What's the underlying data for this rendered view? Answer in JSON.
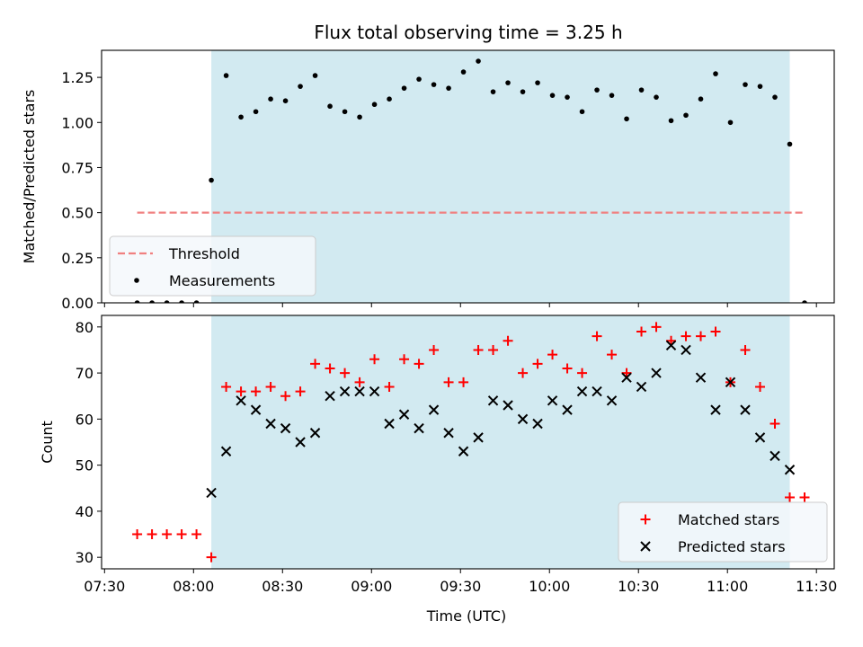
{
  "figure": {
    "title": "Flux total observing time = 3.25 h",
    "xlabel": "Time (UTC)"
  },
  "colors": {
    "shade": "#add8e6",
    "threshold": "#f08080",
    "measurements": "#000000",
    "matched": "#ff0000",
    "predicted": "#000000",
    "legend_bg": "#f4f8fb",
    "legend_border": "#cccccc"
  },
  "chart_data": [
    {
      "type": "scatter",
      "ylabel": "Matched/Predicted stars",
      "ylim": [
        0,
        1.4
      ],
      "xlim": [
        "07:29",
        "11:36"
      ],
      "xticks": [
        "07:30",
        "08:00",
        "08:30",
        "09:00",
        "09:30",
        "10:00",
        "10:30",
        "11:00",
        "11:30"
      ],
      "yticks": [
        "0.00",
        "0.25",
        "0.50",
        "0.75",
        "1.00",
        "1.25"
      ],
      "shaded_span": [
        "08:06",
        "11:21"
      ],
      "legend_position": "lower-left",
      "series": [
        {
          "name": "Threshold",
          "kind": "dashed-line",
          "x": [
            "07:41",
            "11:26"
          ],
          "y": [
            0.5,
            0.5
          ]
        },
        {
          "name": "Measurements",
          "kind": "dot",
          "x": [
            "07:41",
            "07:46",
            "07:51",
            "07:56",
            "08:01",
            "08:06",
            "08:11",
            "08:16",
            "08:21",
            "08:26",
            "08:31",
            "08:36",
            "08:41",
            "08:46",
            "08:51",
            "08:56",
            "09:01",
            "09:06",
            "09:11",
            "09:16",
            "09:21",
            "09:26",
            "09:31",
            "09:36",
            "09:41",
            "09:46",
            "09:51",
            "09:56",
            "10:01",
            "10:06",
            "10:11",
            "10:16",
            "10:21",
            "10:26",
            "10:31",
            "10:36",
            "10:41",
            "10:46",
            "10:51",
            "10:56",
            "11:01",
            "11:06",
            "11:11",
            "11:16",
            "11:21",
            "11:26"
          ],
          "y": [
            0,
            0,
            0,
            0,
            0,
            0.68,
            1.26,
            1.03,
            1.06,
            1.13,
            1.12,
            1.2,
            1.26,
            1.09,
            1.06,
            1.03,
            1.1,
            1.13,
            1.19,
            1.24,
            1.21,
            1.19,
            1.28,
            1.34,
            1.17,
            1.22,
            1.17,
            1.22,
            1.15,
            1.14,
            1.06,
            1.18,
            1.15,
            1.02,
            1.18,
            1.14,
            1.01,
            1.04,
            1.13,
            1.27,
            1.0,
            1.21,
            1.2,
            1.14,
            0.88,
            0
          ]
        }
      ]
    },
    {
      "type": "scatter",
      "ylabel": "Count",
      "ylim": [
        27.5,
        82.5
      ],
      "xlim": [
        "07:29",
        "11:36"
      ],
      "xticks": [
        "07:30",
        "08:00",
        "08:30",
        "09:00",
        "09:30",
        "10:00",
        "10:30",
        "11:00",
        "11:30"
      ],
      "yticks": [
        "30",
        "40",
        "50",
        "60",
        "70",
        "80"
      ],
      "shaded_span": [
        "08:06",
        "11:21"
      ],
      "legend_position": "lower-right",
      "series": [
        {
          "name": "Matched stars",
          "kind": "plus",
          "x": [
            "07:41",
            "07:46",
            "07:51",
            "07:56",
            "08:01",
            "08:06",
            "08:11",
            "08:16",
            "08:21",
            "08:26",
            "08:31",
            "08:36",
            "08:41",
            "08:46",
            "08:51",
            "08:56",
            "09:01",
            "09:06",
            "09:11",
            "09:16",
            "09:21",
            "09:26",
            "09:31",
            "09:36",
            "09:41",
            "09:46",
            "09:51",
            "09:56",
            "10:01",
            "10:06",
            "10:11",
            "10:16",
            "10:21",
            "10:26",
            "10:31",
            "10:36",
            "10:41",
            "10:46",
            "10:51",
            "10:56",
            "11:01",
            "11:06",
            "11:11",
            "11:16",
            "11:21",
            "11:26"
          ],
          "y": [
            35,
            35,
            35,
            35,
            35,
            30,
            67,
            66,
            66,
            67,
            65,
            66,
            72,
            71,
            70,
            68,
            73,
            67,
            73,
            72,
            75,
            68,
            68,
            75,
            75,
            77,
            70,
            72,
            74,
            71,
            70,
            78,
            74,
            70,
            79,
            80,
            77,
            78,
            78,
            79,
            68,
            75,
            67,
            59,
            43,
            43
          ]
        },
        {
          "name": "Predicted stars",
          "kind": "x",
          "x": [
            "08:06",
            "08:11",
            "08:16",
            "08:21",
            "08:26",
            "08:31",
            "08:36",
            "08:41",
            "08:46",
            "08:51",
            "08:56",
            "09:01",
            "09:06",
            "09:11",
            "09:16",
            "09:21",
            "09:26",
            "09:31",
            "09:36",
            "09:41",
            "09:46",
            "09:51",
            "09:56",
            "10:01",
            "10:06",
            "10:11",
            "10:16",
            "10:21",
            "10:26",
            "10:31",
            "10:36",
            "10:41",
            "10:46",
            "10:51",
            "10:56",
            "11:01",
            "11:06",
            "11:11",
            "11:16",
            "11:21"
          ],
          "y": [
            44,
            53,
            64,
            62,
            59,
            58,
            55,
            57,
            65,
            66,
            66,
            66,
            59,
            61,
            58,
            62,
            57,
            53,
            56,
            64,
            63,
            60,
            59,
            64,
            62,
            66,
            66,
            64,
            69,
            67,
            70,
            76,
            75,
            69,
            62,
            68,
            62,
            56,
            52,
            49
          ]
        }
      ]
    }
  ]
}
